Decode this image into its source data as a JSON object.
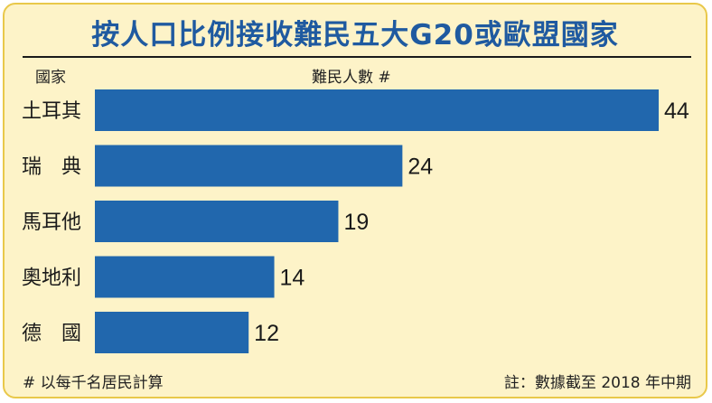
{
  "title": "按人口比例接收難民五大G20或歐盟國家",
  "header": {
    "country_label": "國家",
    "unit_label": "難民人數 #"
  },
  "footer": {
    "note_left": "# 以每千名居民計算",
    "note_right": "註：數據截至 2018 年中期"
  },
  "colors": {
    "bar": "#2167ad",
    "background": "#fdf3c8",
    "border": "#e9c84a",
    "title": "#1f5aa0"
  },
  "chart_data": {
    "type": "bar",
    "orientation": "horizontal",
    "categories": [
      "土耳其",
      "瑞　典",
      "馬耳他",
      "奧地利",
      "德　國"
    ],
    "values": [
      44,
      24,
      19,
      14,
      12
    ],
    "title": "按人口比例接收難民五大G20或歐盟國家",
    "xlabel": "難民人數 #",
    "ylabel": "國家",
    "xlim": [
      0,
      44
    ],
    "grid": false,
    "legend": "none"
  }
}
